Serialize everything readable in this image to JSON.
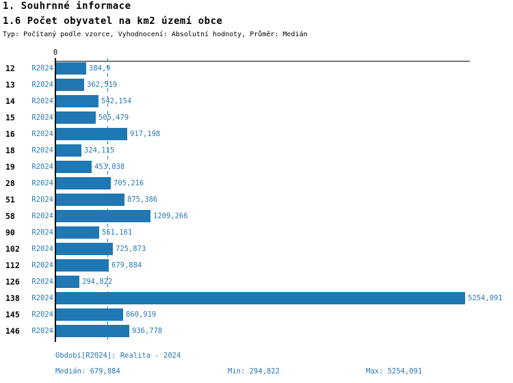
{
  "header": {
    "title": "1. Souhrnné informace",
    "subtitle": "1.6 Počet obyvatel na km2 území obce",
    "meta": "Typ: Počítaný podle vzorce, Vyhodnocení: Absolutní hodnoty, Průměr: Medián"
  },
  "chart_data": {
    "type": "bar",
    "orientation": "horizontal",
    "title": "1.6 Počet obyvatel na km2 území obce",
    "zero_label": "0",
    "xlim": [
      0,
      5254.091
    ],
    "grid": false,
    "legend_position": "none",
    "categories": [
      "12",
      "13",
      "14",
      "15",
      "16",
      "18",
      "19",
      "28",
      "51",
      "58",
      "90",
      "102",
      "112",
      "126",
      "138",
      "145",
      "146"
    ],
    "series": [
      {
        "name": "R2024",
        "values": [
          384.9,
          362.519,
          542.154,
          505.479,
          917.198,
          324.115,
          453.038,
          705.216,
          875.386,
          1209.266,
          551.161,
          725.873,
          679.884,
          294.822,
          5254.091,
          860.919,
          936.778
        ],
        "value_labels": [
          "384,9",
          "362,519",
          "542,154",
          "505,479",
          "917,198",
          "324,115",
          "453,038",
          "705,216",
          "875,386",
          "1209,266",
          "551,161",
          "725,873",
          "679,884",
          "294,822",
          "5254,091",
          "860,919",
          "936,778"
        ]
      }
    ],
    "median": 679.884,
    "min": 294.822,
    "max": 5254.091
  },
  "footer": {
    "period": "Období[R2024]: Realita - 2024",
    "median": "Medián: 679,884",
    "min": "Min: 294,822",
    "max": "Max: 5254,091"
  },
  "colors": {
    "bar": "#1f77b4",
    "accent_text": "#2878b4",
    "axis": "#000000",
    "background": "#ffffff"
  }
}
